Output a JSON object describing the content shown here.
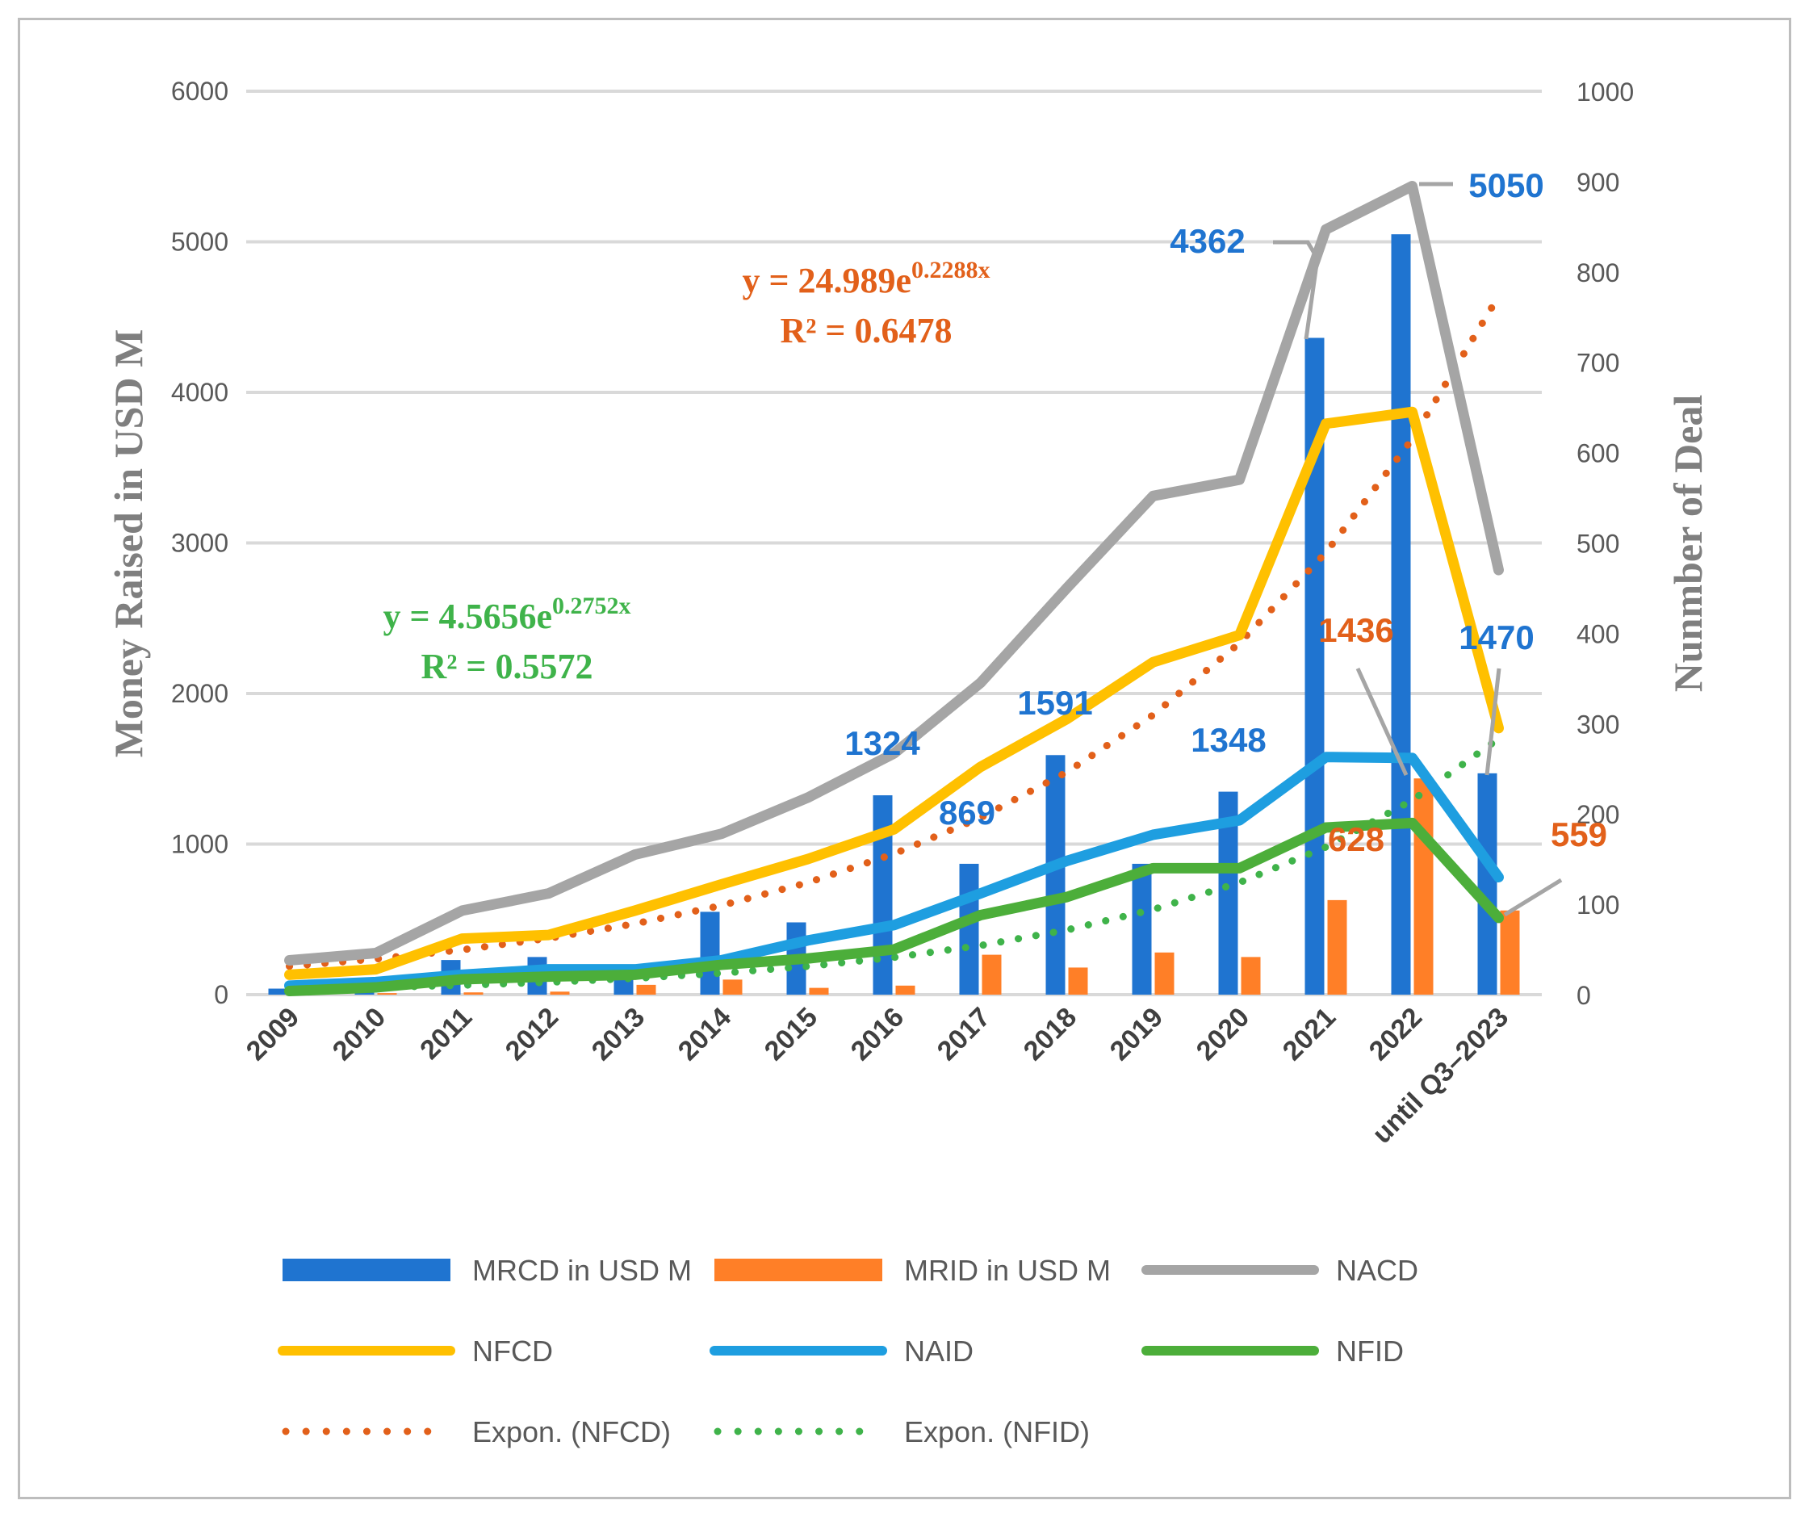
{
  "chart_data": {
    "type": "bar+line",
    "categories": [
      "2009",
      "2010",
      "2011",
      "2012",
      "2013",
      "2014",
      "2015",
      "2016",
      "2017",
      "2018",
      "2019",
      "2020",
      "2021",
      "2022",
      "until Q3–2023"
    ],
    "y_left": {
      "label": "Money Raised in USD M",
      "ylim": [
        0,
        6000
      ],
      "ticks": [
        0,
        1000,
        2000,
        3000,
        4000,
        5000,
        6000
      ]
    },
    "y_right": {
      "label": "Nunmber of Deal",
      "ylim": [
        0,
        1000
      ],
      "ticks": [
        0,
        100,
        200,
        300,
        400,
        500,
        600,
        700,
        800,
        900,
        1000
      ]
    },
    "colors": {
      "MRCD": "#1f74d0",
      "MRID": "#ff7f27",
      "NACD": "#a5a5a5",
      "NFCD": "#ffc000",
      "NAID": "#1e9ee0",
      "NFID": "#4cae3a",
      "ExpNFCD": "#e2601a",
      "ExpNFID": "#3fb34a"
    },
    "bars": [
      {
        "key": "MRCD",
        "name": "MRCD in USD M",
        "axis": "left",
        "values": [
          40,
          60,
          230,
          250,
          150,
          550,
          480,
          1324,
          869,
          1591,
          869,
          1348,
          4362,
          5050,
          1470
        ]
      },
      {
        "key": "MRID",
        "name": "MRID in USD M",
        "axis": "left",
        "values": [
          5,
          10,
          15,
          20,
          65,
          100,
          45,
          60,
          265,
          180,
          280,
          250,
          628,
          1436,
          559
        ]
      }
    ],
    "lines": [
      {
        "key": "NACD",
        "name": "NACD",
        "axis": "right",
        "values": [
          38,
          46,
          93,
          112,
          155,
          178,
          218,
          267,
          345,
          450,
          552,
          570,
          847,
          895,
          470
        ]
      },
      {
        "key": "NFCD",
        "name": "NFCD",
        "axis": "right",
        "values": [
          22,
          28,
          62,
          66,
          93,
          122,
          150,
          183,
          252,
          305,
          368,
          398,
          632,
          645,
          295
        ]
      },
      {
        "key": "NAID",
        "name": "NAID",
        "axis": "right",
        "values": [
          10,
          14,
          22,
          28,
          28,
          38,
          60,
          77,
          112,
          148,
          177,
          193,
          263,
          262,
          130
        ]
      },
      {
        "key": "NFID",
        "name": "NFID",
        "axis": "right",
        "values": [
          4,
          8,
          17,
          20,
          22,
          33,
          40,
          50,
          88,
          108,
          140,
          140,
          185,
          190,
          85
        ]
      }
    ],
    "trendlines": [
      {
        "key": "ExpNFCD",
        "name": "Expon. (NFCD)",
        "of": "NFCD",
        "a": 24.989,
        "b": 0.2288
      },
      {
        "key": "ExpNFID",
        "name": "Expon. (NFID)",
        "of": "NFID",
        "a": 4.5656,
        "b": 0.2752
      }
    ],
    "equations": [
      {
        "key": "ExpNFCD",
        "line1_base": "y = 24.989e",
        "line1_exp": "0.2288x",
        "line2": "R² = 0.6478"
      },
      {
        "key": "ExpNFID",
        "line1_base": "y = 4.5656e",
        "line1_exp": "0.2752x",
        "line2": "R² = 0.5572"
      }
    ],
    "data_labels": [
      {
        "text": "1324",
        "color": "#1f74d0"
      },
      {
        "text": "869",
        "color": "#1f74d0"
      },
      {
        "text": "1591",
        "color": "#1f74d0"
      },
      {
        "text": "1348",
        "color": "#1f74d0"
      },
      {
        "text": "4362",
        "color": "#1f74d0"
      },
      {
        "text": "5050",
        "color": "#1f74d0"
      },
      {
        "text": "1470",
        "color": "#1f74d0"
      },
      {
        "text": "1436",
        "color": "#e2601a"
      },
      {
        "text": "628",
        "color": "#e2601a"
      },
      {
        "text": "559",
        "color": "#e2601a"
      }
    ],
    "legend": [
      {
        "key": "MRCD",
        "label": "MRCD in USD M",
        "style": "bar"
      },
      {
        "key": "MRID",
        "label": "MRID in USD M",
        "style": "bar"
      },
      {
        "key": "NACD",
        "label": "NACD",
        "style": "line"
      },
      {
        "key": "NFCD",
        "label": "NFCD",
        "style": "line"
      },
      {
        "key": "NAID",
        "label": "NAID",
        "style": "line"
      },
      {
        "key": "NFID",
        "label": "NFID",
        "style": "line"
      },
      {
        "key": "ExpNFCD",
        "label": "Expon. (NFCD)",
        "style": "dotted"
      },
      {
        "key": "ExpNFID",
        "label": "Expon. (NFID)",
        "style": "dotted"
      }
    ],
    "legend_position": "bottom",
    "grid": true
  }
}
